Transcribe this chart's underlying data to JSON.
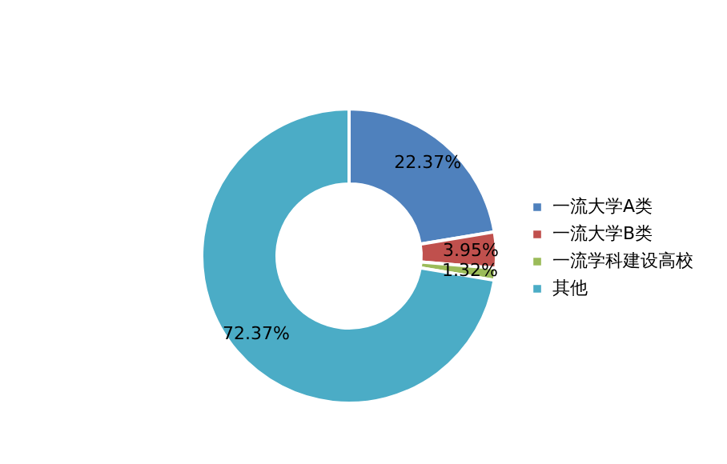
{
  "chart_data": {
    "type": "donut",
    "categories": [
      "一流大学A类",
      "一流大学B类",
      "一流学科建设高校",
      "其他"
    ],
    "values": [
      22.37,
      3.95,
      1.32,
      72.37
    ],
    "colors": [
      "#4f81bd",
      "#c0504d",
      "#9bbb59",
      "#4bacc6"
    ],
    "value_labels": [
      "22.37%",
      "3.95%",
      "1.32%",
      "72.37%"
    ],
    "legend": "right"
  }
}
